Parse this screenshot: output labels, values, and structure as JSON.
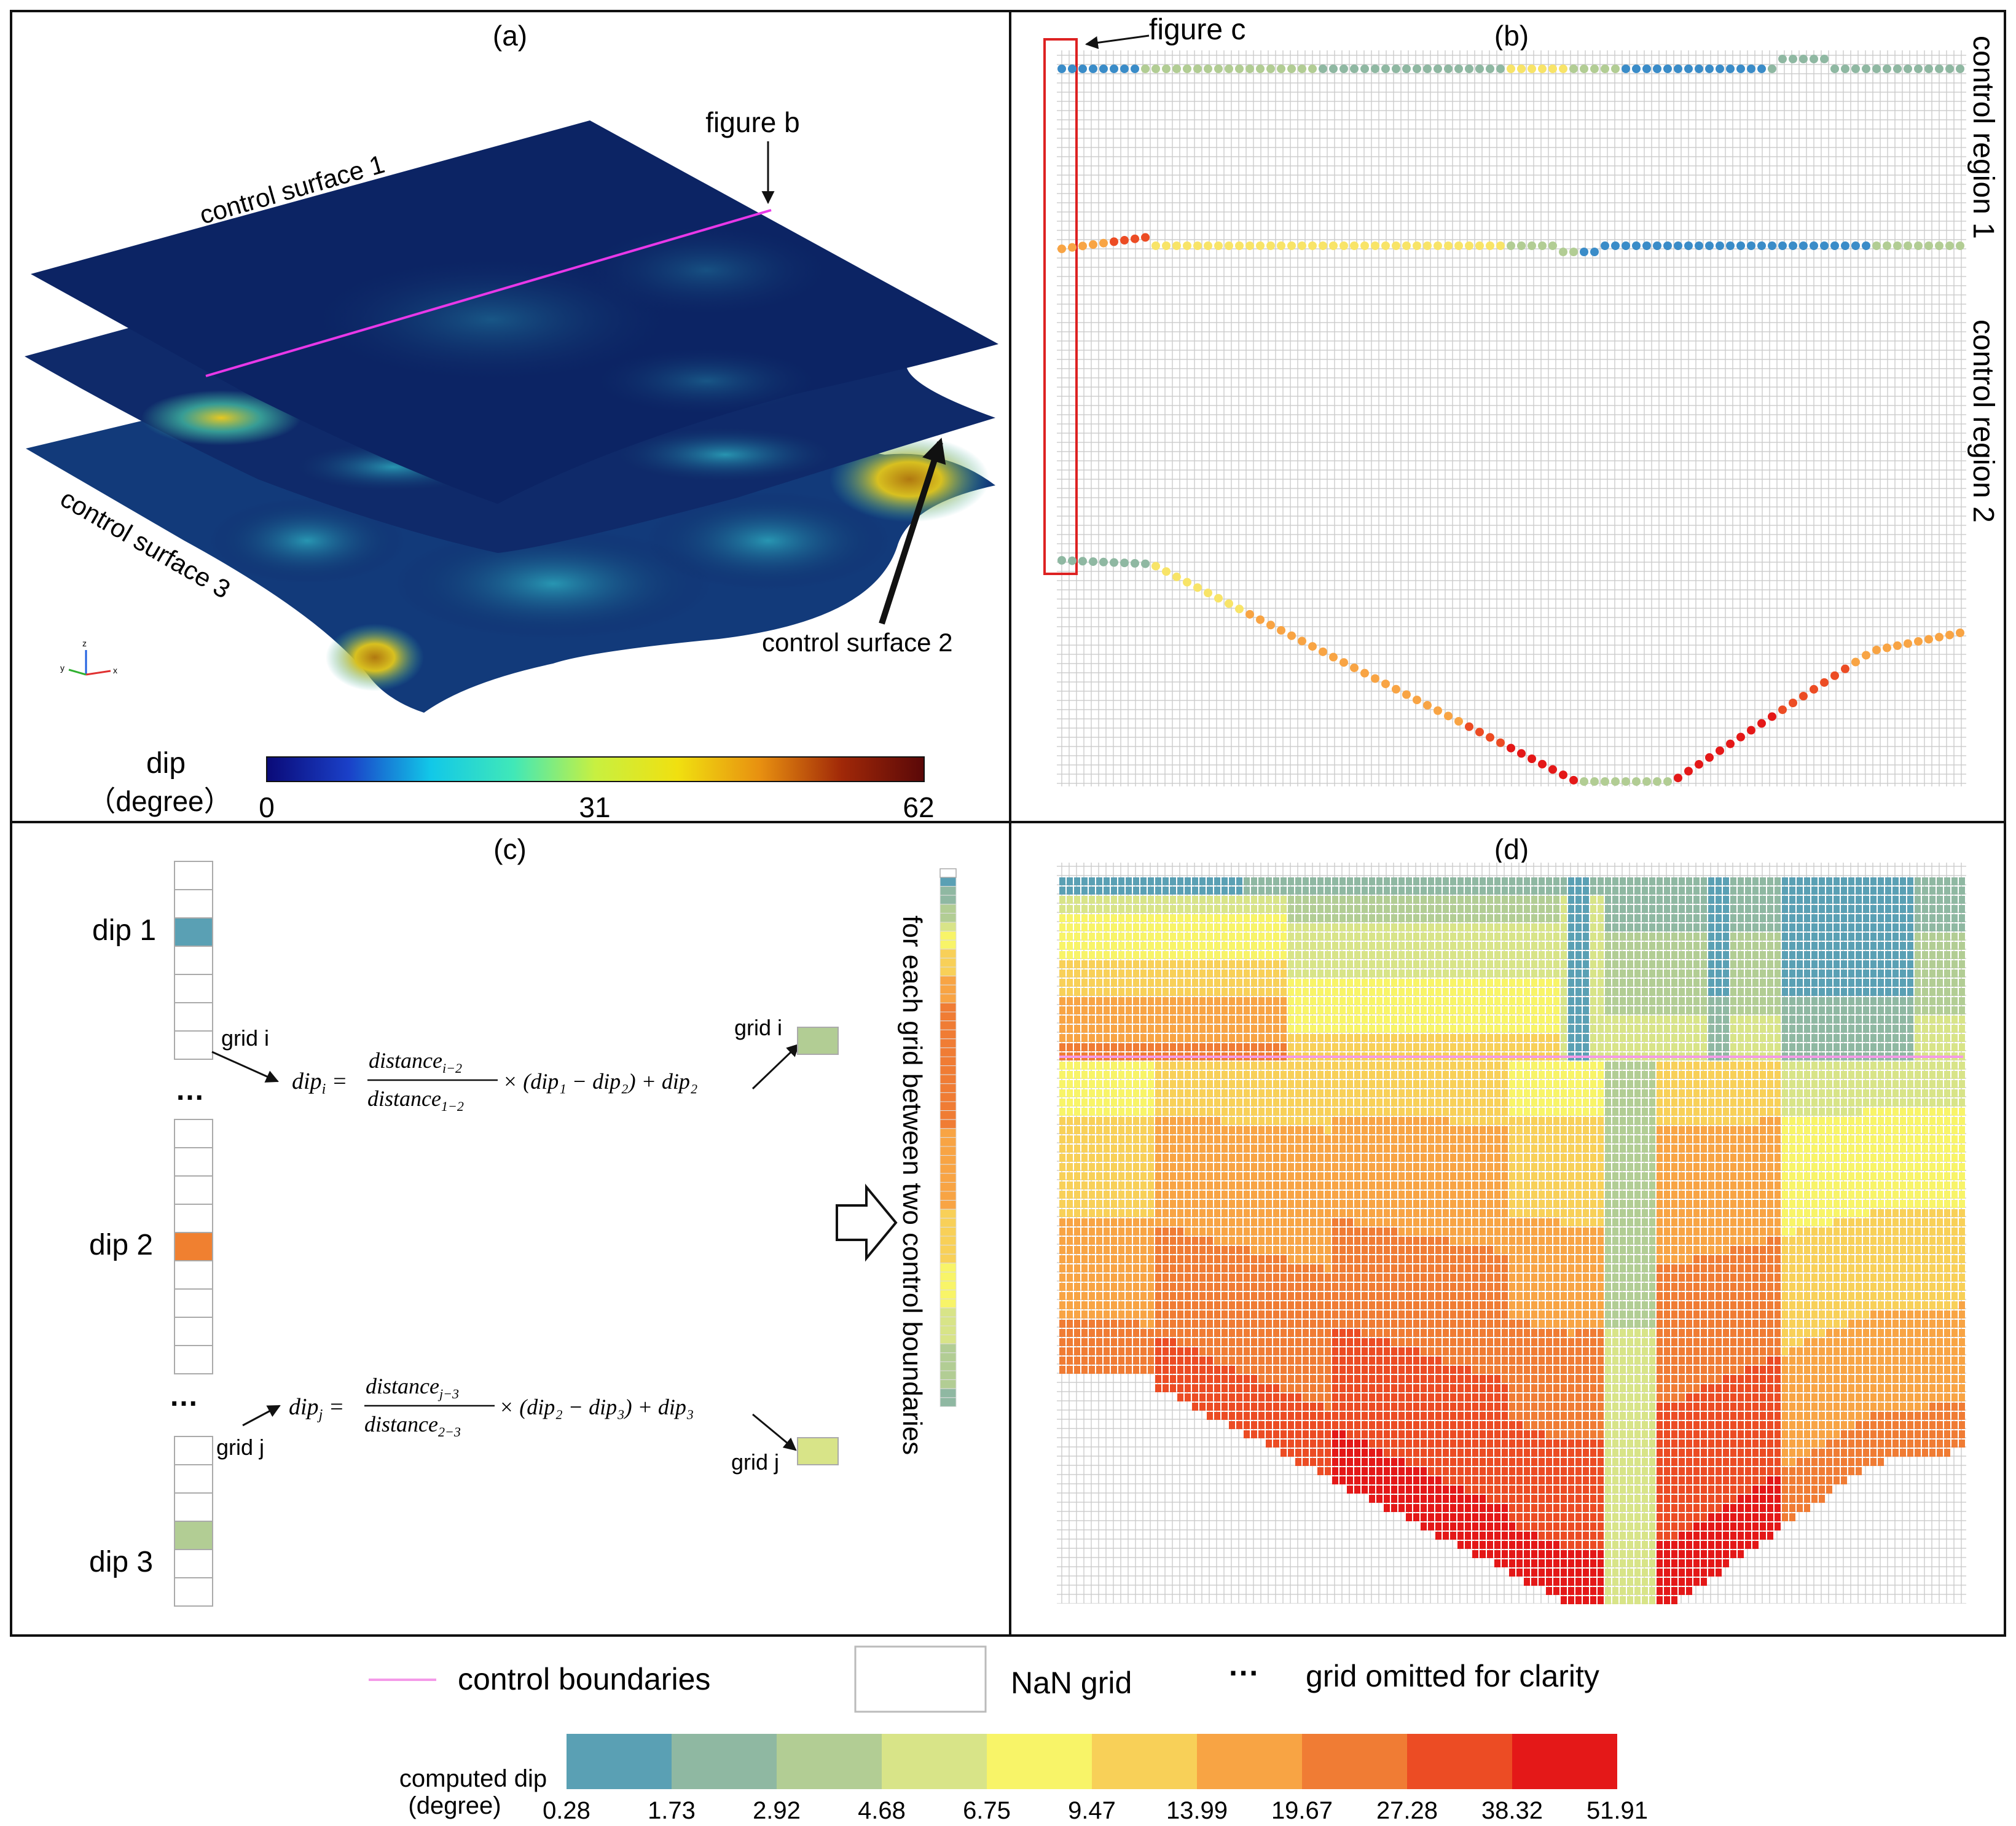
{
  "panels": {
    "a": {
      "label": "(a)",
      "figure_b_label": "figure b",
      "surface1": "control surface 1",
      "surface2": "control surface 2",
      "surface3": "control surface 3",
      "colorbar": {
        "title": "dip",
        "unit": "（degree）",
        "ticks": [
          "0",
          "31",
          "62"
        ],
        "stops": [
          "#0a0a78",
          "#1a40c8",
          "#12c8e8",
          "#40e8b8",
          "#c8f040",
          "#f0e010",
          "#e89010",
          "#a02808",
          "#5a0808"
        ]
      },
      "axes_labels": {
        "z": "z",
        "y": "y",
        "x": "x"
      }
    },
    "b": {
      "label": "(b)",
      "figure_c_label": "figure  c",
      "region1": "control  region 1",
      "region2": "control region 2"
    },
    "c": {
      "label": "(c)",
      "dip1": "dip 1",
      "dip2": "dip 2",
      "dip3": "dip 3",
      "ellipsis": "…",
      "grid_i": "grid i",
      "grid_j": "grid j",
      "formula_i_lhs": "dip",
      "formula_i_sub": "i",
      "formula_i_num": "distance",
      "formula_i_num_sub": "i−2",
      "formula_i_den": "distance",
      "formula_i_den_sub": "1−2",
      "formula_i_rest": "× (dip₁ − dip₂) + dip₂",
      "formula_j_lhs": "dip",
      "formula_j_sub": "j",
      "formula_j_num": "distance",
      "formula_j_num_sub": "j−3",
      "formula_j_den": "distance",
      "formula_j_den_sub": "2−3",
      "formula_j_rest": "× (dip₂ − dip₃) + dip₃",
      "vertical_text": "for each grid between two control boundaries"
    },
    "d": {
      "label": "(d)"
    }
  },
  "legend": {
    "control_boundaries": "control boundaries",
    "nan_grid": "NaN grid",
    "dots": "···",
    "omitted": "grid omitted for clarity",
    "colorbar_title_1": "computed dip",
    "colorbar_title_2": "(degree)",
    "ticks": [
      "0.28",
      "1.73",
      "2.92",
      "4.68",
      "6.75",
      "9.47",
      "13.99",
      "19.67",
      "27.28",
      "38.32",
      "51.91"
    ],
    "colors": [
      "#5aa0b4",
      "#8fb8a2",
      "#b2cd94",
      "#d8e488",
      "#f8f468",
      "#f8d058",
      "#f8a444",
      "#f07c34",
      "#ec4c24",
      "#e41818"
    ]
  },
  "colors": {
    "boundary_pink": "#f49ae8",
    "magenta_line": "#e838e8",
    "red_box": "#dd2222",
    "grid_line": "#c8c8c8"
  }
}
